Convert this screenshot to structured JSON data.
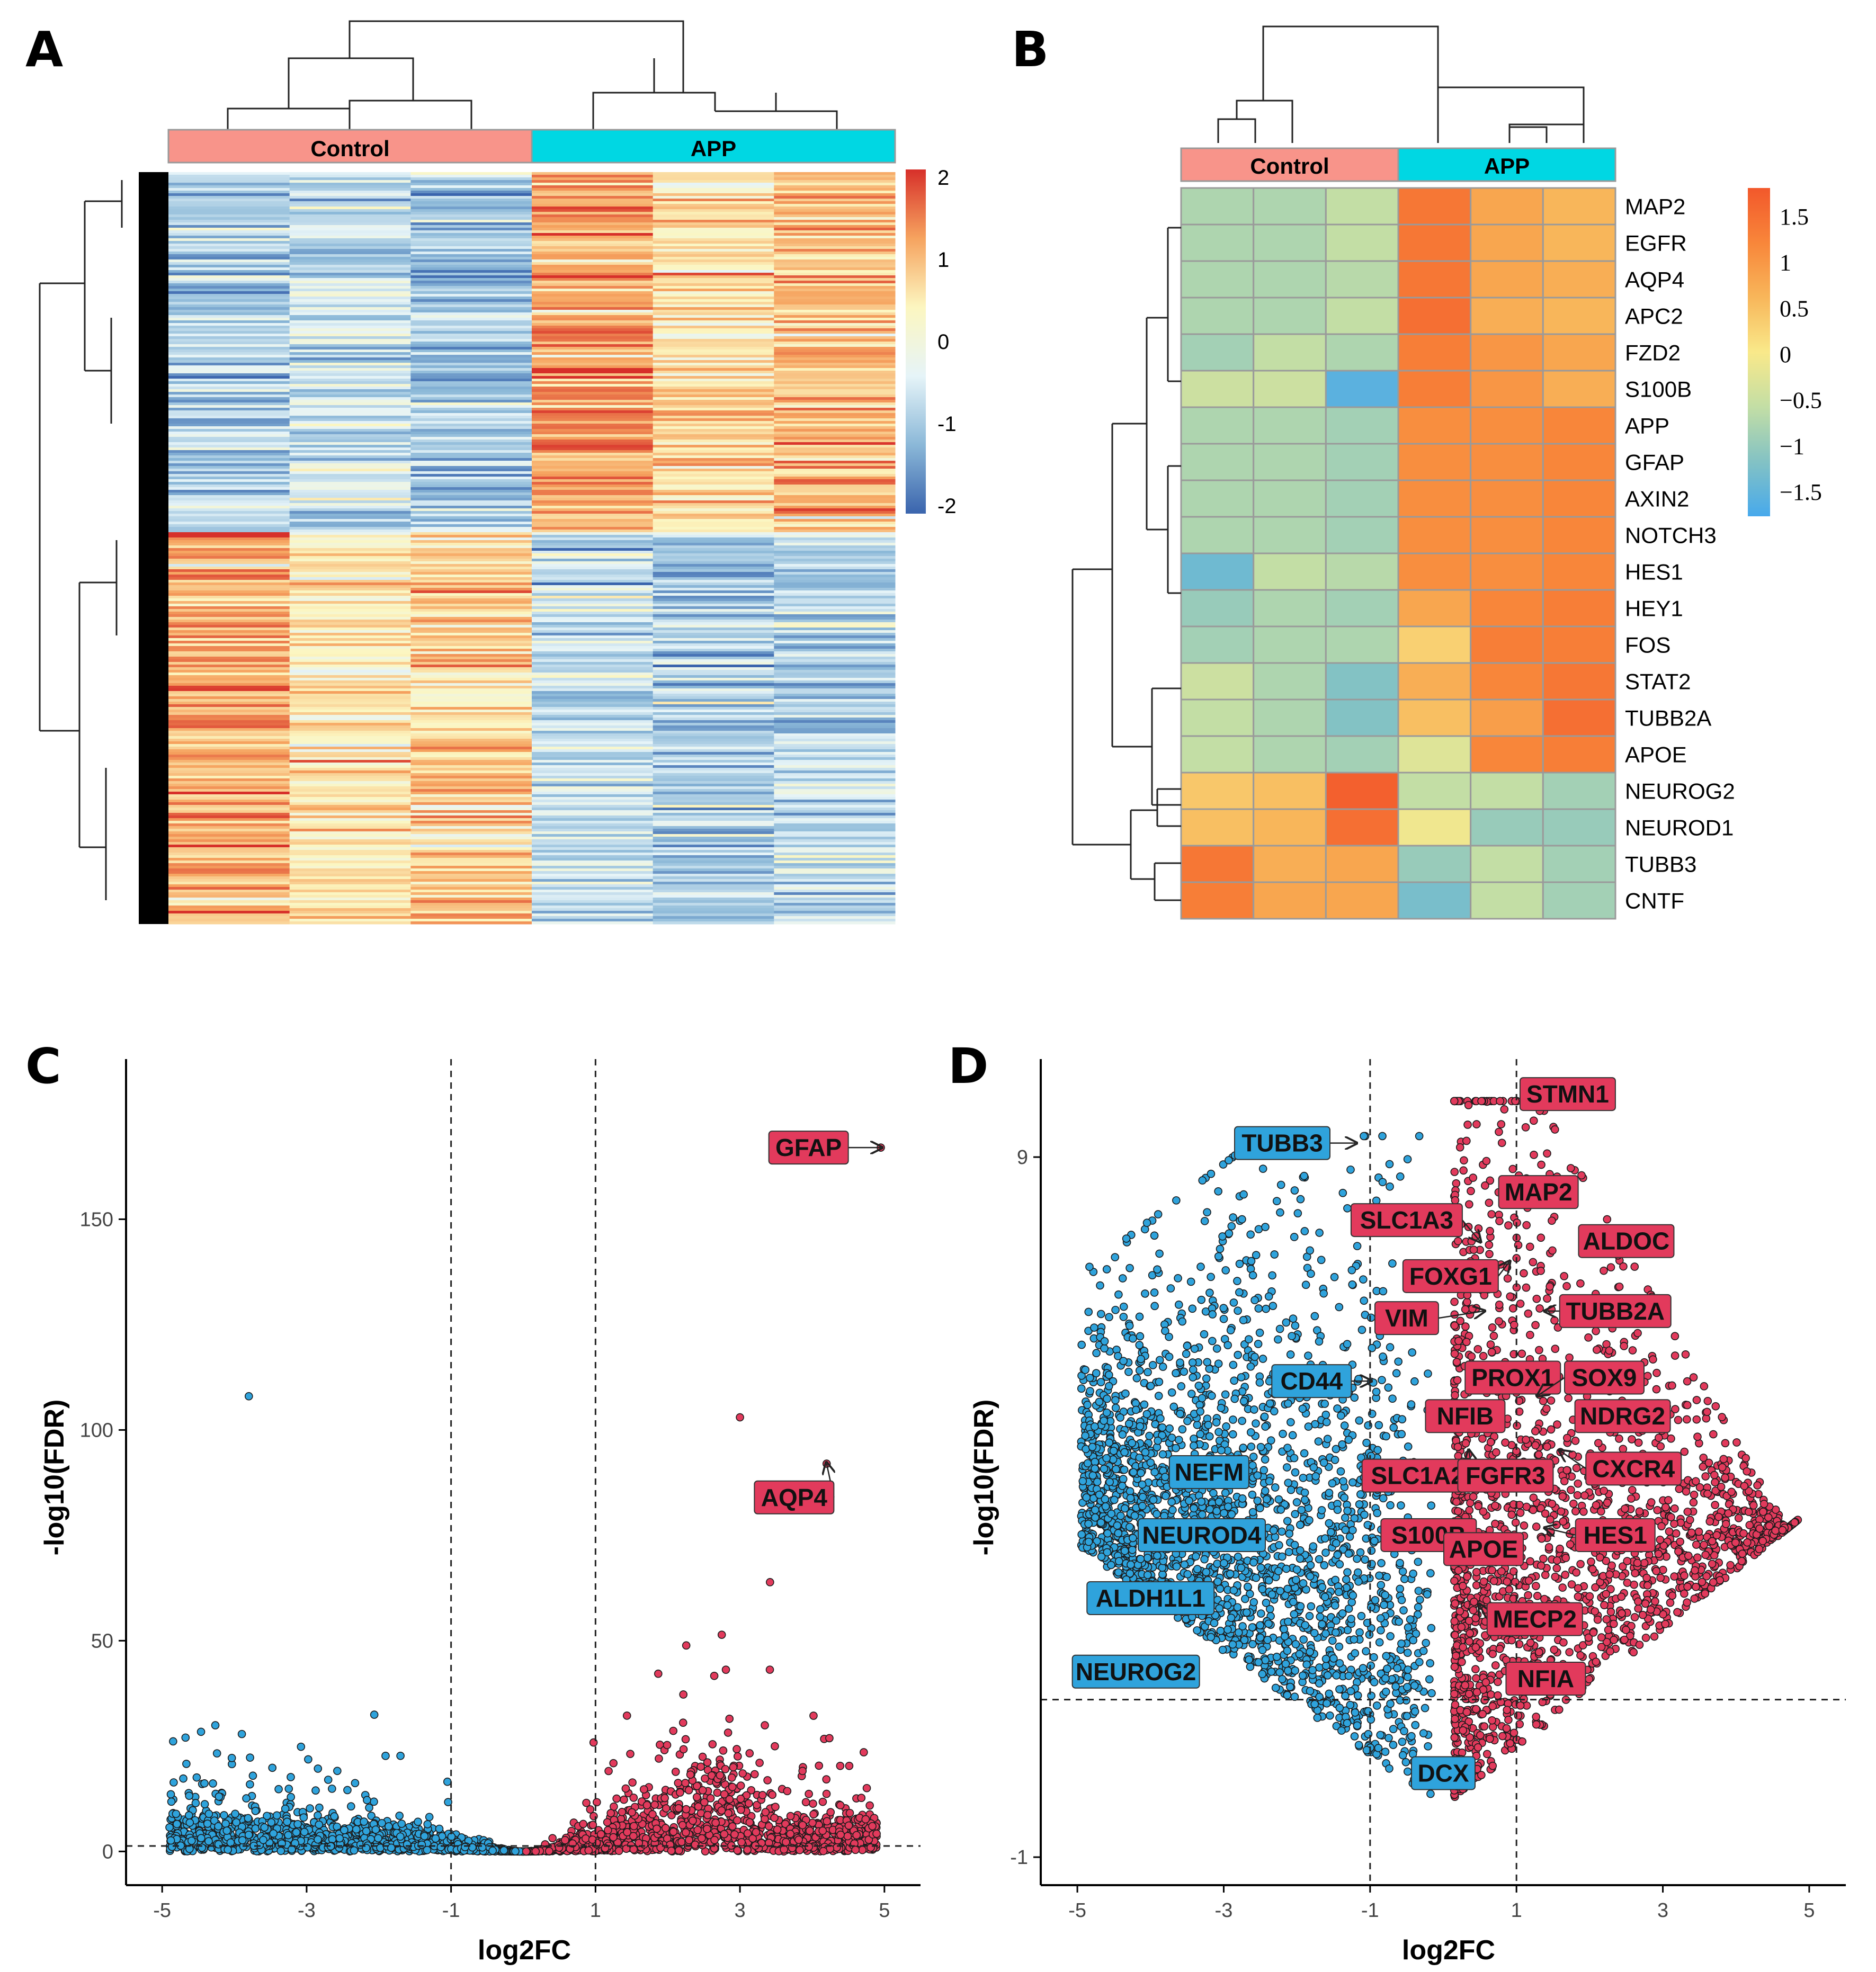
{
  "panels": {
    "a": "A",
    "b": "B",
    "c": "C",
    "d": "D"
  },
  "colors": {
    "control": "#F8948A",
    "app": "#00D7E3",
    "down": "#2FA3DC",
    "up": "#E23A5C",
    "heat_a": [
      "#3A64AD",
      "#8BB8D8",
      "#E6F4F8",
      "#FCF6C0",
      "#F6A35F",
      "#D7302A"
    ],
    "heat_b": [
      "#47A9EC",
      "#83C2C4",
      "#C3DEA5",
      "#F9E98A",
      "#F8B65A",
      "#F8863A",
      "#F2582B"
    ]
  },
  "chart_data": [
    {
      "id": "A",
      "type": "heatmap",
      "title": "",
      "groups": [
        "Control",
        "APP"
      ],
      "n_columns_per_group": 3,
      "color_scale": {
        "min": -2,
        "max": 2,
        "ticks": [
          "2",
          "1",
          "0",
          "-1",
          "-2"
        ]
      },
      "row_blocks": [
        {
          "fraction": 0.48,
          "values": [
            -0.9,
            -0.6,
            -1.0,
            1.2,
            0.6,
            0.9
          ]
        },
        {
          "fraction": 0.52,
          "values": [
            1.0,
            0.5,
            0.7,
            -0.6,
            -0.9,
            -0.8
          ]
        }
      ]
    },
    {
      "id": "B",
      "type": "heatmap",
      "groups": [
        "Control",
        "APP"
      ],
      "n_columns_per_group": 3,
      "color_scale": {
        "min": -1.8,
        "max": 1.8,
        "ticks": [
          "1.5",
          "1",
          "0.5",
          "0",
          "−0.5",
          "−1",
          "−1.5"
        ]
      },
      "genes": [
        "MAP2",
        "EGFR",
        "AQP4",
        "APC2",
        "FZD2",
        "S100B",
        "APP",
        "GFAP",
        "AXIN2",
        "NOTCH3",
        "HES1",
        "HEY1",
        "FOS",
        "STAT2",
        "TUBB2A",
        "APOE",
        "NEUROG2",
        "NEUROD1",
        "TUBB3",
        "CNTF"
      ],
      "values": [
        [
          -0.8,
          -0.8,
          -0.6,
          1.4,
          0.8,
          0.6
        ],
        [
          -0.8,
          -0.8,
          -0.6,
          1.4,
          0.8,
          0.6
        ],
        [
          -0.8,
          -0.8,
          -0.7,
          1.4,
          0.8,
          0.7
        ],
        [
          -0.8,
          -0.8,
          -0.6,
          1.5,
          0.7,
          0.6
        ],
        [
          -0.9,
          -0.6,
          -0.8,
          1.3,
          1.0,
          0.8
        ],
        [
          -0.5,
          -0.5,
          -1.6,
          1.3,
          1.0,
          0.7
        ],
        [
          -0.8,
          -0.8,
          -0.9,
          1.1,
          1.1,
          1.2
        ],
        [
          -0.8,
          -0.8,
          -0.9,
          1.1,
          1.1,
          1.2
        ],
        [
          -0.8,
          -0.8,
          -0.9,
          1.1,
          1.1,
          1.2
        ],
        [
          -0.8,
          -0.8,
          -0.9,
          1.1,
          1.1,
          1.2
        ],
        [
          -1.4,
          -0.6,
          -0.7,
          1.1,
          1.1,
          1.2
        ],
        [
          -1.0,
          -0.8,
          -0.9,
          0.8,
          1.2,
          1.3
        ],
        [
          -0.9,
          -0.8,
          -0.8,
          0.3,
          1.3,
          1.3
        ],
        [
          -0.5,
          -0.8,
          -1.2,
          0.7,
          1.2,
          1.4
        ],
        [
          -0.6,
          -0.8,
          -1.2,
          0.5,
          0.9,
          1.5
        ],
        [
          -0.6,
          -0.8,
          -0.9,
          -0.3,
          1.2,
          1.3
        ],
        [
          0.4,
          0.5,
          1.7,
          -0.6,
          -0.6,
          -0.9
        ],
        [
          0.5,
          0.6,
          1.5,
          -0.1,
          -1.0,
          -1.0
        ],
        [
          1.4,
          0.7,
          0.8,
          -1.0,
          -0.6,
          -0.9
        ],
        [
          1.3,
          0.8,
          0.8,
          -1.3,
          -0.6,
          -0.9
        ]
      ]
    },
    {
      "id": "C",
      "type": "scatter",
      "title": "",
      "xlabel": "log2FC",
      "ylabel": "-log10(FDR)",
      "xlim": [
        -5.5,
        5.5
      ],
      "ylim": [
        -8,
        188
      ],
      "xticks": [
        -5,
        -3,
        -1,
        1,
        3,
        5
      ],
      "yticks": [
        0,
        50,
        100,
        150
      ],
      "vlines": [
        -1,
        1
      ],
      "hline": 1.3,
      "highlight_points": [
        [
          -3.8,
          108
        ],
        [
          3.0,
          103
        ],
        [
          4.2,
          92
        ],
        [
          4.95,
          167
        ]
      ],
      "labels": [
        {
          "text": "GFAP",
          "x": 4.95,
          "y": 167,
          "lx": 3.95,
          "ly": 167,
          "cls": "up"
        },
        {
          "text": "AQP4",
          "x": 4.2,
          "y": 92,
          "lx": 3.75,
          "ly": 84,
          "cls": "up"
        }
      ]
    },
    {
      "id": "D",
      "type": "scatter",
      "title": "",
      "xlabel": "log2FC",
      "ylabel": "-log10(FDR)",
      "xlim": [
        -5.5,
        5.5
      ],
      "ylim": [
        -1.4,
        10.4
      ],
      "xticks": [
        -5,
        -3,
        -1,
        1,
        3,
        5
      ],
      "yticks": [
        -1,
        9
      ],
      "vlines": [
        -1,
        1
      ],
      "hline": 1.25,
      "labels": [
        {
          "text": "STMN1",
          "x": 1.2,
          "y": 9.8,
          "lx": 1.7,
          "ly": 9.9,
          "cls": "up"
        },
        {
          "text": "TUBB3",
          "x": -1.2,
          "y": 9.2,
          "lx": -2.2,
          "ly": 9.2,
          "cls": "down"
        },
        {
          "text": "MAP2",
          "x": 1.0,
          "y": 8.3,
          "lx": 1.3,
          "ly": 8.5,
          "cls": "up"
        },
        {
          "text": "SLC1A3",
          "x": 0.5,
          "y": 7.8,
          "lx": -0.5,
          "ly": 8.1,
          "cls": "up"
        },
        {
          "text": "ALDOC",
          "x": 1.9,
          "y": 8.0,
          "lx": 2.5,
          "ly": 7.8,
          "cls": "up"
        },
        {
          "text": "FOXG1",
          "x": 0.9,
          "y": 7.5,
          "lx": 0.1,
          "ly": 7.3,
          "cls": "up"
        },
        {
          "text": "VIM",
          "x": 0.55,
          "y": 6.8,
          "lx": -0.5,
          "ly": 6.7,
          "cls": "up"
        },
        {
          "text": "TUBB2A",
          "x": 1.4,
          "y": 6.8,
          "lx": 2.35,
          "ly": 6.8,
          "cls": "up"
        },
        {
          "text": "CD44",
          "x": -1.0,
          "y": 5.8,
          "lx": -1.8,
          "ly": 5.8,
          "cls": "down"
        },
        {
          "text": "PROX1",
          "x": 1.0,
          "y": 5.9,
          "lx": 0.95,
          "ly": 5.85,
          "cls": "up"
        },
        {
          "text": "SOX9",
          "x": 1.3,
          "y": 5.6,
          "lx": 2.2,
          "ly": 5.85,
          "cls": "up"
        },
        {
          "text": "NFIB",
          "x": 0.3,
          "y": 5.3,
          "lx": 0.3,
          "ly": 5.3,
          "cls": "up"
        },
        {
          "text": "NDRG2",
          "x": 1.8,
          "y": 5.3,
          "lx": 2.45,
          "ly": 5.3,
          "cls": "up"
        },
        {
          "text": "NEFM",
          "x": -3.2,
          "y": 4.5,
          "lx": -3.2,
          "ly": 4.5,
          "cls": "down"
        },
        {
          "text": "SLC1A2",
          "x": 0.35,
          "y": 4.8,
          "lx": -0.35,
          "ly": 4.45,
          "cls": "up"
        },
        {
          "text": "FGFR3",
          "x": 0.85,
          "y": 4.45,
          "lx": 0.85,
          "ly": 4.45,
          "cls": "up"
        },
        {
          "text": "CXCR4",
          "x": 1.6,
          "y": 4.8,
          "lx": 2.6,
          "ly": 4.55,
          "cls": "up"
        },
        {
          "text": "NEUROD4",
          "x": -3.3,
          "y": 3.6,
          "lx": -3.3,
          "ly": 3.6,
          "cls": "down"
        },
        {
          "text": "S100B",
          "x": -0.2,
          "y": 3.6,
          "lx": -0.2,
          "ly": 3.6,
          "cls": "up"
        },
        {
          "text": "APOE",
          "x": 0.55,
          "y": 3.5,
          "lx": 0.55,
          "ly": 3.4,
          "cls": "up"
        },
        {
          "text": "HES1",
          "x": 1.4,
          "y": 3.7,
          "lx": 2.35,
          "ly": 3.6,
          "cls": "up"
        },
        {
          "text": "ALDH1L1",
          "x": -4.0,
          "y": 2.7,
          "lx": -4.0,
          "ly": 2.7,
          "cls": "down"
        },
        {
          "text": "MECP2",
          "x": 0.5,
          "y": 2.6,
          "lx": 1.25,
          "ly": 2.4,
          "cls": "up"
        },
        {
          "text": "NEUROG2",
          "x": -4.2,
          "y": 1.65,
          "lx": -4.2,
          "ly": 1.65,
          "cls": "down"
        },
        {
          "text": "NFIA",
          "x": 1.4,
          "y": 1.55,
          "lx": 1.4,
          "ly": 1.55,
          "cls": "up"
        },
        {
          "text": "DCX",
          "x": 0.0,
          "y": 0.2,
          "lx": 0.0,
          "ly": 0.2,
          "cls": "down"
        }
      ]
    }
  ]
}
